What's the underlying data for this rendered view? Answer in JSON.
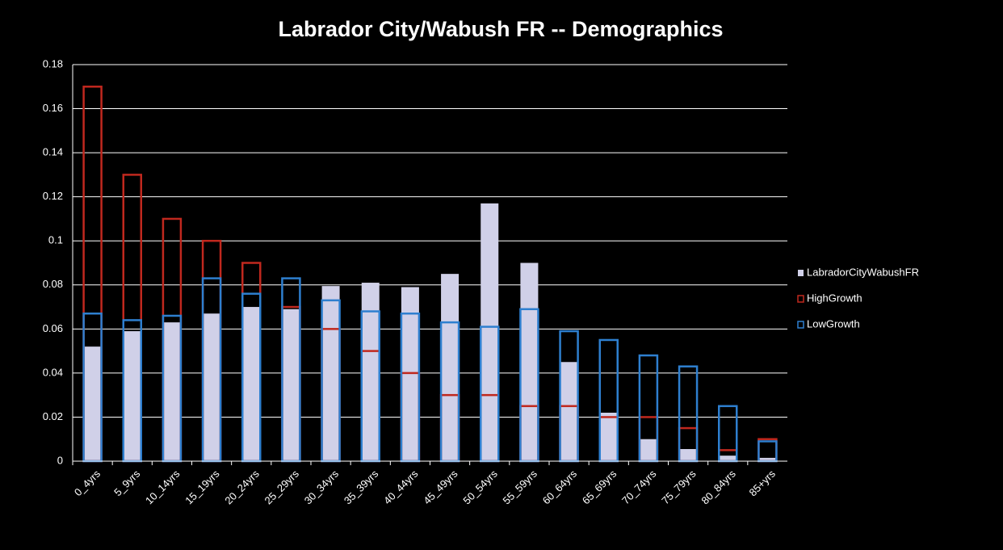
{
  "chart_data": {
    "type": "bar",
    "title": "Labrador City/Wabush FR -- Demographics",
    "categories": [
      "0_4yrs",
      "5_9yrs",
      "10_14yrs",
      "15_19yrs",
      "20_24yrs",
      "25_29yrs",
      "30_34yrs",
      "35_39yrs",
      "40_44yrs",
      "45_49yrs",
      "50_54yrs",
      "55_59yrs",
      "60_64yrs",
      "65_69yrs",
      "70_74yrs",
      "75_79yrs",
      "80_84yrs",
      "85+yrs"
    ],
    "series": [
      {
        "name": "LabradorCityWabushFR",
        "color": "#d0d0e8",
        "style": "filled",
        "values": [
          0.052,
          0.059,
          0.063,
          0.067,
          0.07,
          0.069,
          0.0795,
          0.081,
          0.079,
          0.085,
          0.117,
          0.09,
          0.045,
          0.022,
          0.01,
          0.0055,
          0.0025,
          0.0015
        ]
      },
      {
        "name": "HighGrowth",
        "color": "#c0281e",
        "style": "outline",
        "values": [
          0.17,
          0.13,
          0.11,
          0.1,
          0.09,
          0.07,
          0.06,
          0.05,
          0.04,
          0.03,
          0.03,
          0.025,
          0.025,
          0.02,
          0.02,
          0.015,
          0.005,
          0.01
        ]
      },
      {
        "name": "LowGrowth",
        "color": "#2e7fcf",
        "style": "outline",
        "values": [
          0.067,
          0.064,
          0.066,
          0.083,
          0.076,
          0.083,
          0.073,
          0.068,
          0.067,
          0.063,
          0.061,
          0.069,
          0.059,
          0.055,
          0.048,
          0.043,
          0.025,
          0.009
        ]
      }
    ],
    "ylim": [
      0,
      0.18
    ],
    "yticks": [
      0,
      0.02,
      0.04,
      0.06,
      0.08,
      0.1,
      0.12,
      0.14,
      0.16,
      0.18
    ],
    "grid": true,
    "legend": "right"
  }
}
